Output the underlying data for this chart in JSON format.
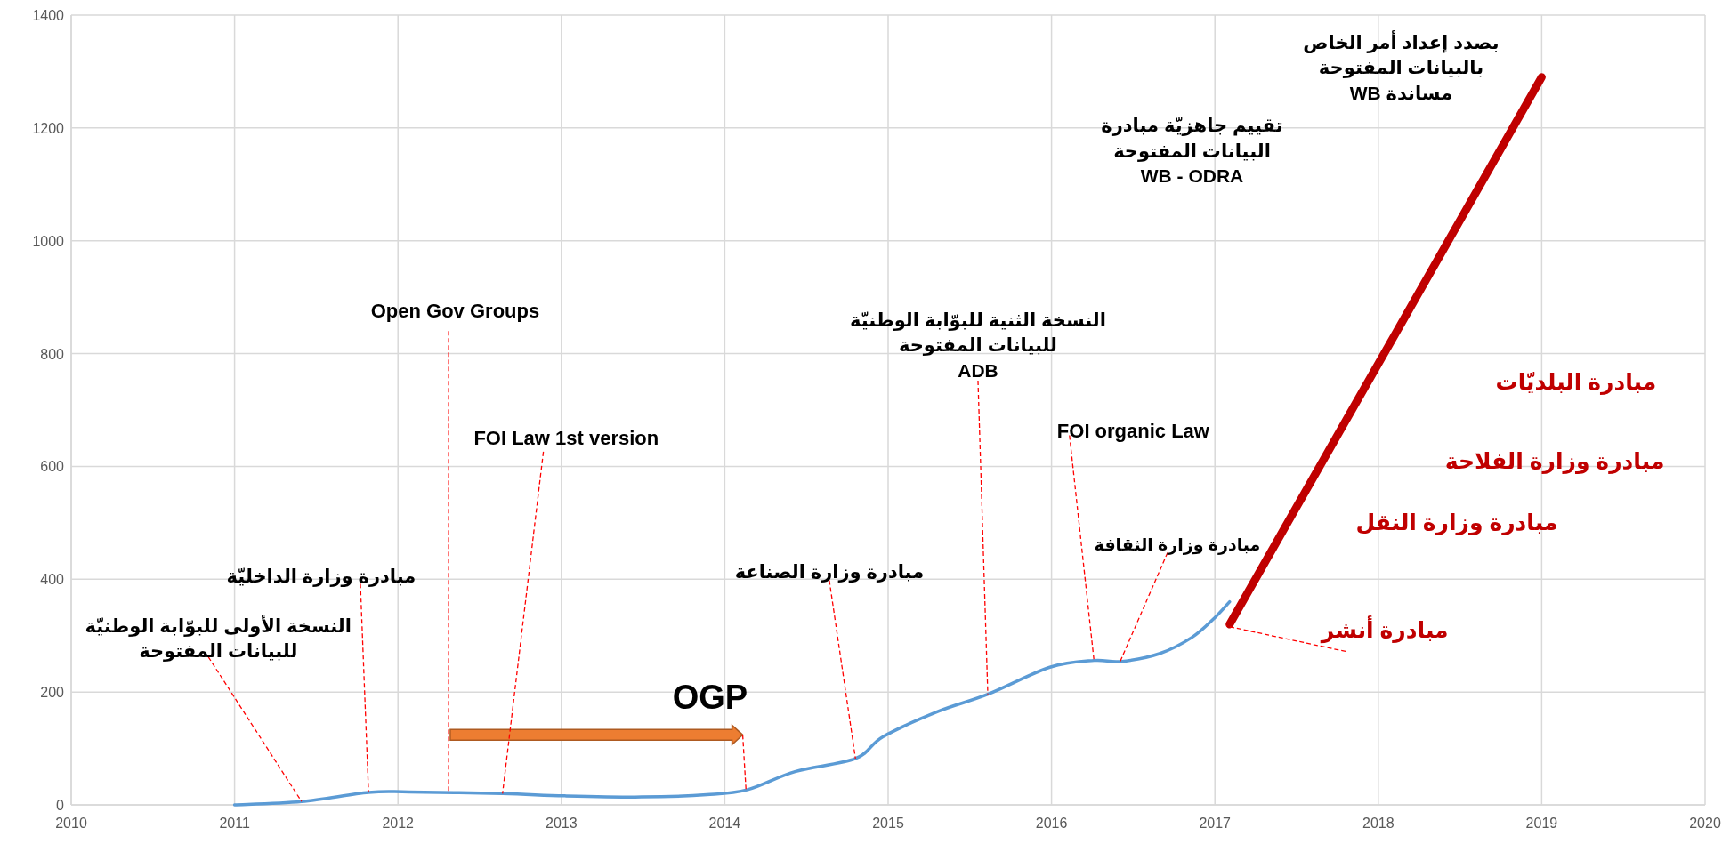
{
  "chart_data": {
    "type": "line",
    "xlim": [
      2010,
      2020
    ],
    "xticks": [
      2010,
      2011,
      2012,
      2013,
      2014,
      2015,
      2016,
      2017,
      2018,
      2019,
      2020
    ],
    "ylim": [
      0,
      1400
    ],
    "yticks": [
      0,
      200,
      400,
      600,
      800,
      1000,
      1200,
      1400
    ],
    "grid": true,
    "series": [
      {
        "color": "#5b9bd5",
        "x": [
          2011.0,
          2011.41,
          2011.82,
          2012.07,
          2012.64,
          2013.02,
          2013.49,
          2013.89,
          2014.14,
          2014.43,
          2014.8,
          2014.97,
          2015.31,
          2015.61,
          2015.99,
          2016.26,
          2016.42,
          2016.66,
          2016.86,
          2017.0,
          2017.09
        ],
        "values": [
          0,
          6,
          22,
          23,
          20,
          16,
          14,
          18,
          27,
          59,
          82,
          121,
          166,
          196,
          244,
          256,
          254,
          268,
          297,
          332,
          360
        ]
      },
      {
        "color": "#c00000",
        "x": [
          2017.09,
          2019.0
        ],
        "values": [
          320,
          1290
        ]
      }
    ],
    "annotations": [
      {
        "text": "النسخة الأولى للبوّابة الوطنيّة\nللبيانات المفتوحة",
        "x": 2011.41,
        "y": 6
      },
      {
        "text": "مبادرة وزارة الداخليّة",
        "x": 2011.82,
        "y": 22
      },
      {
        "text": "Open Gov Groups",
        "x": 2012.31,
        "y": 21
      },
      {
        "text": "FOI Law 1st version",
        "x": 2012.64,
        "y": 20
      },
      {
        "text": "OGP",
        "x": 2014.13,
        "y": 27
      },
      {
        "text": "مبادرة وزارة الصناعة",
        "x": 2014.8,
        "y": 82
      },
      {
        "text": "النسخة الثنية للبوّابة الوطنيّة\nللبيانات المفتوحة\nADB",
        "x": 2015.61,
        "y": 196
      },
      {
        "text": "FOI organic Law",
        "x": 2016.26,
        "y": 256
      },
      {
        "text": "مبادرة وزارة الثقافة",
        "x": 2016.42,
        "y": 254
      },
      "تقييم جاهزيّة مبادرة\nالبيانات المفتوحة\nWB - ODRA",
      "بصدد إعداد أمر الخاص\nبالبيانات المفتوحة\nمساندة WB",
      "مبادرة البلديّات",
      "مبادرة وزارة الفلاحة",
      "مبادرة وزارة النقل",
      {
        "text": "مبادرة أنشر",
        "x": 2017.07,
        "y": 317
      }
    ]
  }
}
